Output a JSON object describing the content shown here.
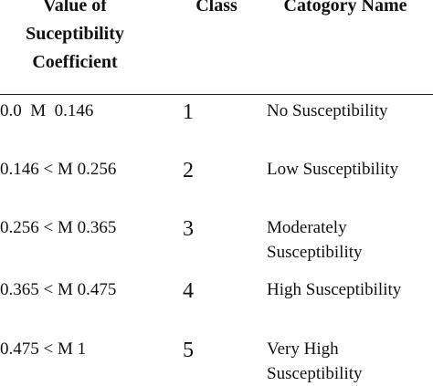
{
  "table": {
    "header": [
      [
        "Value of",
        "Suceptibility",
        "Coefficient"
      ],
      [
        "Class"
      ],
      [
        "Catogory Name"
      ]
    ],
    "rows": [
      [
        "0.0  M  0.146",
        "1",
        [
          "No Susceptibility"
        ]
      ],
      [
        "0.146 < M 0.256",
        "2",
        [
          "Low Susceptibility"
        ]
      ],
      [
        "0.256 < M 0.365",
        "3",
        [
          "Moderately",
          "Susceptibility"
        ]
      ],
      [
        "0.365 < M 0.475",
        "4",
        [
          "High Susceptibility"
        ]
      ],
      [
        "0.475 < M 1",
        "5",
        [
          "Very High",
          "Susceptibility"
        ]
      ]
    ]
  }
}
